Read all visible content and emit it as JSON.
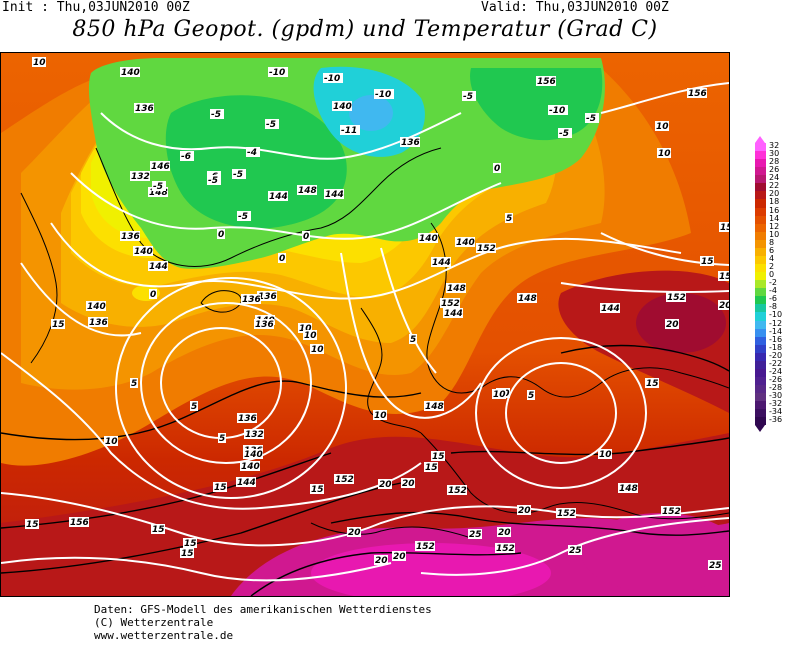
{
  "header": {
    "init": "Init : Thu,03JUN2010 00Z",
    "valid": "Valid: Thu,03JUN2010 00Z",
    "title": "850 hPa Geopot. (gpdm) und Temperatur (Grad C)"
  },
  "legend": {
    "values": [
      "32",
      "30",
      "28",
      "26",
      "24",
      "22",
      "20",
      "18",
      "16",
      "14",
      "12",
      "10",
      "8",
      "6",
      "4",
      "2",
      "0",
      "-2",
      "-4",
      "-6",
      "-8",
      "-10",
      "-12",
      "-14",
      "-16",
      "-18",
      "-20",
      "-22",
      "-24",
      "-26",
      "-28",
      "-30",
      "-32",
      "-34",
      "-36"
    ],
    "colors": [
      "#ff60ff",
      "#ff30d8",
      "#e818b0",
      "#d01890",
      "#b81870",
      "#a00c30",
      "#b81818",
      "#cc2800",
      "#dc3c00",
      "#e45000",
      "#ec6400",
      "#f07c00",
      "#f49400",
      "#f8b000",
      "#fcc800",
      "#fce000",
      "#f0f000",
      "#a8e828",
      "#60d840",
      "#20c850",
      "#18c8a0",
      "#20d0d8",
      "#40b8f0",
      "#3890f0",
      "#3060e0",
      "#3040c8",
      "#3828b0",
      "#402098",
      "#481890",
      "#502090",
      "#582888",
      "#603080",
      "#4c1870",
      "#3c1060",
      "#300850"
    ]
  },
  "map": {
    "geopotential_labels": [
      "140",
      "136",
      "132",
      "136",
      "140",
      "144",
      "146",
      "148",
      "136",
      "140",
      "140",
      "144",
      "156",
      "144",
      "136",
      "140",
      "140",
      "152",
      "156",
      "148",
      "152",
      "144",
      "136",
      "132",
      "136",
      "140",
      "144",
      "148",
      "152",
      "152",
      "148",
      "144",
      "152",
      "152",
      "152",
      "156",
      "140",
      "136",
      "148",
      "152",
      "156",
      "136",
      "136",
      "140",
      "144",
      "148",
      "152"
    ],
    "temperature_labels": [
      "10",
      "-10",
      "-10",
      "-10",
      "-5",
      "-5",
      "-5",
      "-5",
      "-6",
      "-6",
      "-4",
      "-11",
      "-5",
      "-5",
      "-5",
      "-10",
      "-5",
      "-5",
      "0",
      "0",
      "0",
      "0",
      "0",
      "5",
      "5",
      "5",
      "5",
      "5",
      "5",
      "10",
      "10",
      "10",
      "10",
      "10",
      "10",
      "10",
      "10",
      "10",
      "10",
      "15",
      "15",
      "15",
      "15",
      "15",
      "15",
      "15",
      "15",
      "15",
      "15",
      "15",
      "15",
      "20",
      "20",
      "20",
      "20",
      "20",
      "20",
      "20",
      "20",
      "20",
      "25",
      "25",
      "25"
    ]
  },
  "footer": {
    "line1": "Daten: GFS-Modell des amerikanischen Wetterdienstes",
    "line2": "(C) Wetterzentrale",
    "line3": "www.wetterzentrale.de"
  }
}
